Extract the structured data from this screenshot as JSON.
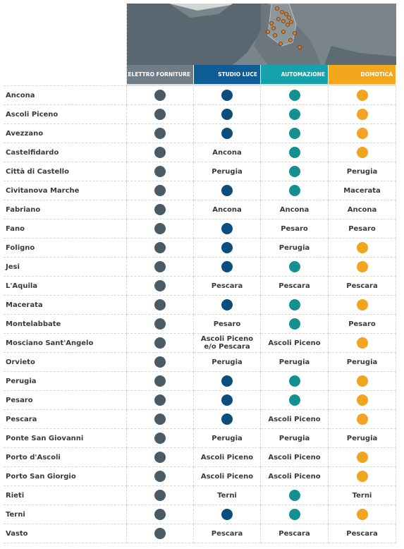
{
  "table": {
    "columns": [
      "ELETTRO FORNITURE",
      "STUDIO LUCE",
      "AUTOMAZIONE",
      "DOMOTICA"
    ],
    "column_colors": [
      "#4b5b66",
      "#0b4e7e",
      "#13908f",
      "#f0a41f"
    ],
    "header_colors": [
      "#6e7d87",
      "#0e5d97",
      "#16a2ab",
      "#f2a71d"
    ],
    "rows": [
      [
        "Ancona",
        true,
        true,
        true,
        true
      ],
      [
        "Ascoli Piceno",
        true,
        true,
        true,
        true
      ],
      [
        "Avezzano",
        true,
        true,
        true,
        true
      ],
      [
        "Castelfidardo",
        true,
        "Ancona",
        true,
        true
      ],
      [
        "Città di Castello",
        true,
        "Perugia",
        true,
        "Perugia"
      ],
      [
        "Civitanova Marche",
        true,
        true,
        true,
        "Macerata"
      ],
      [
        "Fabriano",
        true,
        "Ancona",
        "Ancona",
        "Ancona"
      ],
      [
        "Fano",
        true,
        true,
        "Pesaro",
        "Pesaro"
      ],
      [
        "Foligno",
        true,
        true,
        "Perugia",
        true
      ],
      [
        "Jesi",
        true,
        true,
        true,
        true
      ],
      [
        "L'Aquila",
        true,
        "Pescara",
        "Pescara",
        "Pescara"
      ],
      [
        "Macerata",
        true,
        true,
        true,
        true
      ],
      [
        "Montelabbate",
        true,
        "Pesaro",
        true,
        "Pesaro"
      ],
      [
        "Mosciano Sant'Angelo",
        true,
        "Ascoli Piceno e/o Pescara",
        "Ascoli Piceno",
        true
      ],
      [
        "Orvieto",
        true,
        "Perugia",
        "Perugia",
        "Perugia"
      ],
      [
        "Perugia",
        true,
        true,
        true,
        true
      ],
      [
        "Pesaro",
        true,
        true,
        true,
        true
      ],
      [
        "Pescara",
        true,
        true,
        "Ascoli Piceno",
        true
      ],
      [
        "Ponte San Giovanni",
        true,
        "Perugia",
        "Perugia",
        "Perugia"
      ],
      [
        "Porto d'Ascoli",
        true,
        "Ascoli Piceno",
        "Ascoli Piceno",
        true
      ],
      [
        "Porto San Giorgio",
        true,
        "Ascoli Piceno",
        "Ascoli Piceno",
        true
      ],
      [
        "Rieti",
        true,
        "Terni",
        true,
        "Terni"
      ],
      [
        "Terni",
        true,
        true,
        true,
        true
      ],
      [
        "Vasto",
        true,
        "Pescara",
        "Pescara",
        "Pescara"
      ]
    ]
  }
}
